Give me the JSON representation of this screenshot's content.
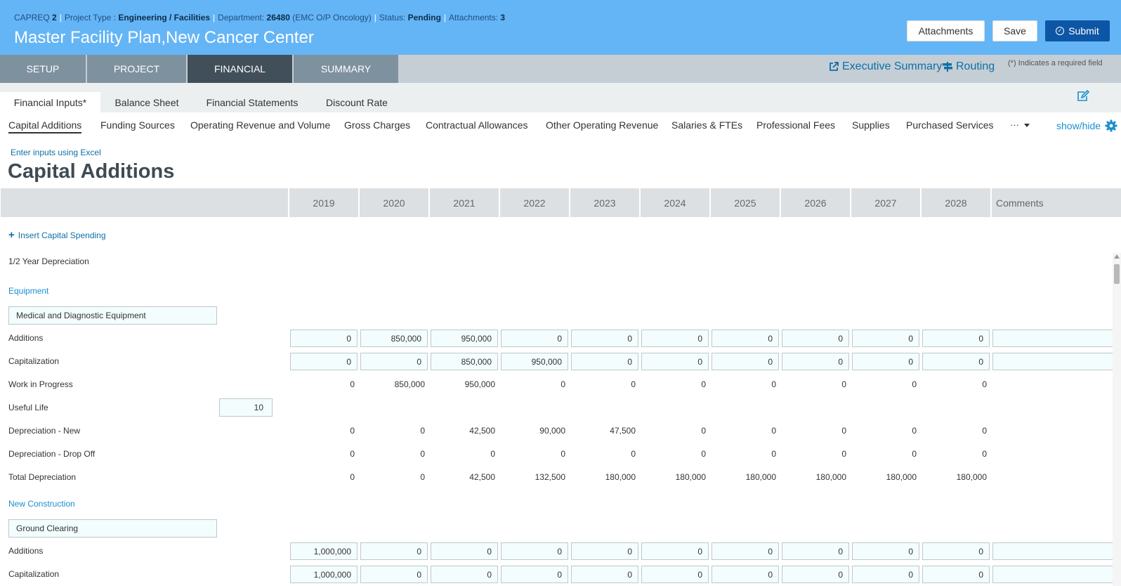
{
  "header": {
    "meta": [
      {
        "label": "CAPREQ",
        "value": "2"
      },
      {
        "label": "Project Type :",
        "value": "Engineering / Facilities"
      },
      {
        "label": "Department:",
        "value": "26480",
        "extra": "(EMC O/P Oncology)"
      },
      {
        "label": "Status:",
        "value": "Pending"
      },
      {
        "label": "Attachments:",
        "value": "3"
      }
    ],
    "title": "Master Facility Plan,New Cancer Center",
    "attachments_label": "Attachments",
    "save_label": "Save",
    "submit_label": "Submit"
  },
  "main_tabs": [
    "SETUP",
    "PROJECT",
    "FINANCIAL",
    "SUMMARY"
  ],
  "nav_links": {
    "executive_summary": "Executive Summary",
    "routing": "Routing"
  },
  "required_note": "(*) Indicates a required field",
  "sub_tabs": [
    "Financial Inputs*",
    "Balance Sheet",
    "Financial Statements",
    "Discount Rate"
  ],
  "category_tabs": [
    "Capital Additions",
    "Funding Sources",
    "Operating Revenue and Volume",
    "Gross Charges",
    "Contractual Allowances",
    "Other Operating Revenue",
    "Salaries & FTEs",
    "Professional Fees",
    "Supplies",
    "Purchased Services"
  ],
  "more_label": "···",
  "show_hide": "show/hide",
  "excel_link": "Enter inputs using Excel",
  "page_title": "Capital Additions",
  "table": {
    "years": [
      "2019",
      "2020",
      "2021",
      "2022",
      "2023",
      "2024",
      "2025",
      "2026",
      "2027",
      "2028"
    ],
    "comments_header": "Comments",
    "insert_label": "Insert Capital Spending",
    "half_year": "1/2 Year Depreciation"
  },
  "equipment": {
    "section": "Equipment",
    "name": "Medical and Diagnostic Equipment",
    "additions_label": "Additions",
    "additions": [
      "0",
      "850,000",
      "950,000",
      "0",
      "0",
      "0",
      "0",
      "0",
      "0",
      "0"
    ],
    "capitalization_label": "Capitalization",
    "capitalization": [
      "0",
      "0",
      "850,000",
      "950,000",
      "0",
      "0",
      "0",
      "0",
      "0",
      "0"
    ],
    "wip_label": "Work in Progress",
    "wip": [
      "0",
      "850,000",
      "950,000",
      "0",
      "0",
      "0",
      "0",
      "0",
      "0",
      "0"
    ],
    "useful_life_label": "Useful Life",
    "useful_life": "10",
    "dep_new_label": "Depreciation - New",
    "dep_new": [
      "0",
      "0",
      "42,500",
      "90,000",
      "47,500",
      "0",
      "0",
      "0",
      "0",
      "0"
    ],
    "dep_drop_label": "Depreciation - Drop Off",
    "dep_drop": [
      "0",
      "0",
      "0",
      "0",
      "0",
      "0",
      "0",
      "0",
      "0",
      "0"
    ],
    "total_dep_label": "Total Depreciation",
    "total_dep": [
      "0",
      "0",
      "42,500",
      "132,500",
      "180,000",
      "180,000",
      "180,000",
      "180,000",
      "180,000",
      "180,000"
    ]
  },
  "construction": {
    "section": "New Construction",
    "name": "Ground Clearing",
    "additions_label": "Additions",
    "additions": [
      "1,000,000",
      "0",
      "0",
      "0",
      "0",
      "0",
      "0",
      "0",
      "0",
      "0"
    ],
    "capitalization_label": "Capitalization",
    "capitalization": [
      "1,000,000",
      "0",
      "0",
      "0",
      "0",
      "0",
      "0",
      "0",
      "0",
      "0"
    ]
  }
}
